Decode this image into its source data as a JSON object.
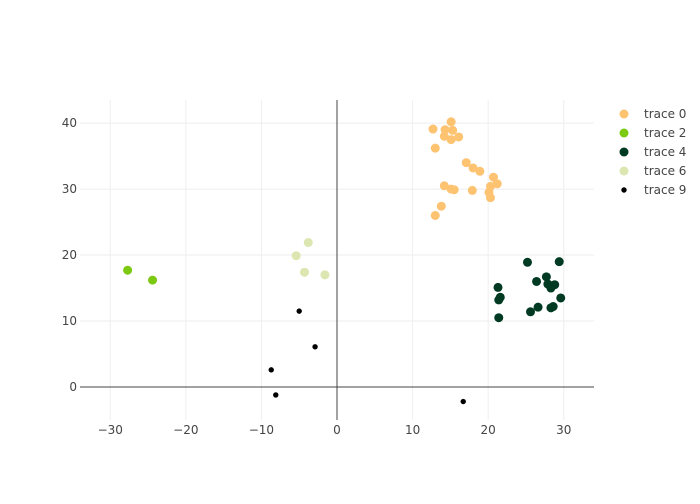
{
  "chart_data": {
    "type": "scatter",
    "xlim": [
      -34,
      34
    ],
    "ylim": [
      -5,
      43.5
    ],
    "x_ticks": [
      -30,
      -20,
      -10,
      0,
      10,
      20,
      30
    ],
    "x_tick_labels": [
      "−30",
      "−20",
      "−10",
      "0",
      "10",
      "20",
      "30"
    ],
    "y_ticks": [
      0,
      10,
      20,
      30,
      40
    ],
    "y_tick_labels": [
      "0",
      "10",
      "20",
      "30",
      "40"
    ],
    "grid": true,
    "zero_lines": true,
    "legend_position": "top-right",
    "series": [
      {
        "name": "trace 0",
        "color": "#FDC371",
        "marker_size": "medium",
        "points": [
          [
            15.1,
            40.2
          ],
          [
            12.7,
            39.1
          ],
          [
            14.3,
            39.0
          ],
          [
            15.3,
            38.9
          ],
          [
            14.2,
            38.0
          ],
          [
            15.1,
            37.5
          ],
          [
            16.1,
            37.9
          ],
          [
            13.0,
            36.2
          ],
          [
            17.1,
            34.0
          ],
          [
            18.0,
            33.2
          ],
          [
            18.9,
            32.7
          ],
          [
            20.7,
            31.8
          ],
          [
            21.2,
            30.8
          ],
          [
            20.3,
            30.4
          ],
          [
            14.2,
            30.5
          ],
          [
            15.1,
            30.0
          ],
          [
            15.5,
            29.9
          ],
          [
            17.9,
            29.8
          ],
          [
            20.1,
            29.5
          ],
          [
            20.3,
            28.7
          ],
          [
            13.8,
            27.4
          ],
          [
            13.0,
            26.0
          ]
        ]
      },
      {
        "name": "trace 2",
        "color": "#7CC912",
        "marker_size": "medium",
        "points": [
          [
            -27.7,
            17.7
          ],
          [
            -24.4,
            16.2
          ]
        ]
      },
      {
        "name": "trace 4",
        "color": "#003A23",
        "marker_size": "medium",
        "points": [
          [
            25.2,
            18.9
          ],
          [
            29.4,
            19.0
          ],
          [
            27.7,
            16.7
          ],
          [
            26.4,
            16.0
          ],
          [
            27.9,
            15.6
          ],
          [
            28.8,
            15.5
          ],
          [
            21.3,
            15.1
          ],
          [
            28.3,
            15.0
          ],
          [
            21.6,
            13.6
          ],
          [
            29.6,
            13.5
          ],
          [
            21.4,
            13.2
          ],
          [
            26.6,
            12.1
          ],
          [
            28.6,
            12.2
          ],
          [
            28.3,
            12.0
          ],
          [
            25.6,
            11.4
          ],
          [
            21.4,
            10.5
          ]
        ]
      },
      {
        "name": "trace 6",
        "color": "#DCE6B0",
        "marker_size": "medium",
        "points": [
          [
            -3.8,
            21.9
          ],
          [
            -5.4,
            19.9
          ],
          [
            -4.3,
            17.4
          ],
          [
            -1.6,
            17.0
          ]
        ]
      },
      {
        "name": "trace 9",
        "color": "#000000",
        "marker_size": "small",
        "points": [
          [
            -5.0,
            11.5
          ],
          [
            -2.9,
            6.1
          ],
          [
            -8.7,
            2.6
          ],
          [
            -8.1,
            -1.2
          ],
          [
            16.7,
            -2.2
          ]
        ]
      }
    ]
  }
}
